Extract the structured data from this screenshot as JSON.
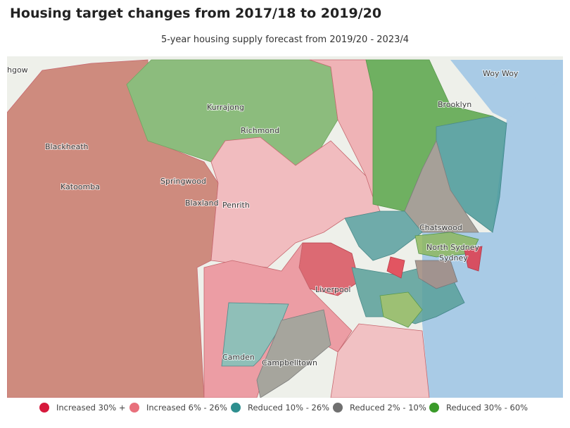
{
  "header": {
    "title": "Housing target changes from 2017/18 to 2019/20",
    "subtitle": "5-year housing supply forecast from 2019/20 - 2023/4"
  },
  "places": [
    "hgow",
    "Woy Woy",
    "Kurrajong",
    "Brooklyn",
    "Richmond",
    "Blackheath",
    "Springwood",
    "Katoomba",
    "Blaxland",
    "Penrith",
    "Chatswood",
    "North Sydney",
    "Sydney",
    "Liverpool",
    "Camden",
    "Campbelltown"
  ],
  "legend": [
    {
      "label": "Increased 30% +",
      "color": "#d6193c"
    },
    {
      "label": "Increased 6% - 26%",
      "color": "#e8707c"
    },
    {
      "label": "Reduced 10% - 26%",
      "color": "#2e8f8f"
    },
    {
      "label": "Reduced 2% - 10%",
      "color": "#707070"
    },
    {
      "label": "Reduced 30% - 60%",
      "color": "#3a9a2a"
    }
  ]
}
